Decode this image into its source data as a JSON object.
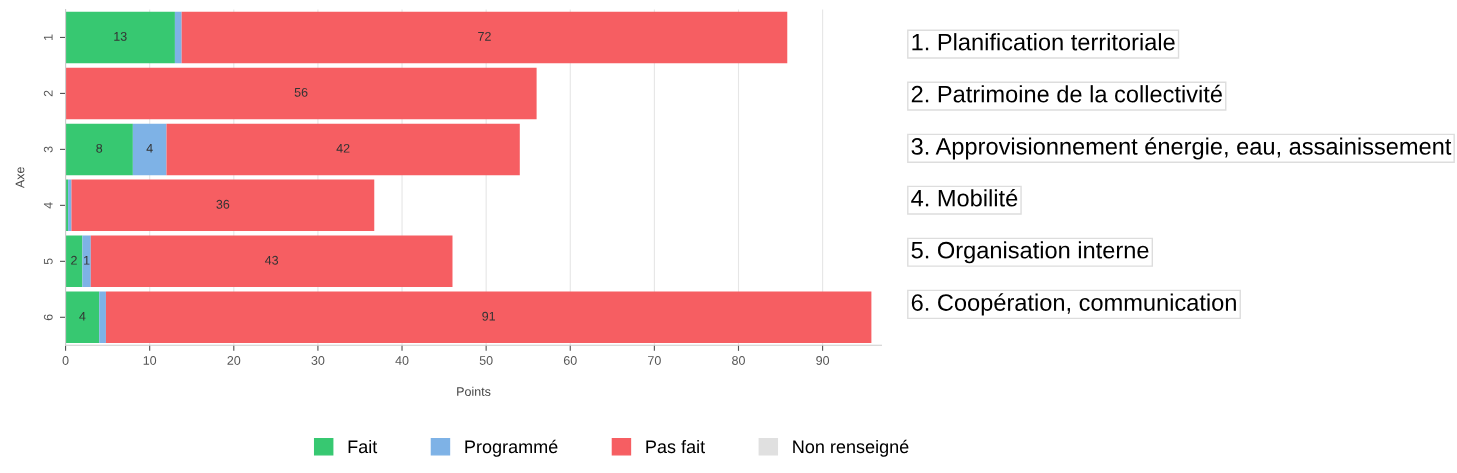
{
  "chart_data": {
    "type": "bar",
    "orientation": "horizontal",
    "stacked": true,
    "categories": [
      "1",
      "2",
      "3",
      "4",
      "5",
      "6"
    ],
    "series": [
      {
        "name": "Fait",
        "color": "#37c871",
        "values": [
          13,
          null,
          8,
          0.3,
          2,
          4
        ],
        "value_labels": [
          "13",
          null,
          "8",
          null,
          "2",
          "4"
        ]
      },
      {
        "name": "Programmé",
        "color": "#7eb2e6",
        "values": [
          0.8,
          null,
          4,
          0.4,
          1,
          0.8
        ],
        "value_labels": [
          null,
          null,
          "4",
          null,
          "1",
          null
        ]
      },
      {
        "name": "Pas fait",
        "color": "#f65e62",
        "values": [
          72,
          56,
          42,
          36,
          43,
          91
        ],
        "value_labels": [
          "72",
          "56",
          "42",
          "36",
          "43",
          "91"
        ]
      },
      {
        "name": "Non renseigné",
        "color": "#e0e0e0",
        "values": [
          null,
          null,
          null,
          null,
          null,
          null
        ]
      }
    ],
    "xlabel": "Points",
    "ylabel": "Axe",
    "xlim": [
      0,
      97
    ],
    "xticks": [
      0,
      10,
      20,
      30,
      40,
      50,
      60,
      70,
      80,
      90
    ],
    "grid": "x",
    "legend": "bottom",
    "annotations": [
      "1. Planification territoriale",
      "2. Patrimoine de la collectivité",
      "3. Approvisionnement énergie, eau, assainissement",
      "4. Mobilité",
      "5. Organisation interne",
      "6. Coopération, communication"
    ]
  }
}
